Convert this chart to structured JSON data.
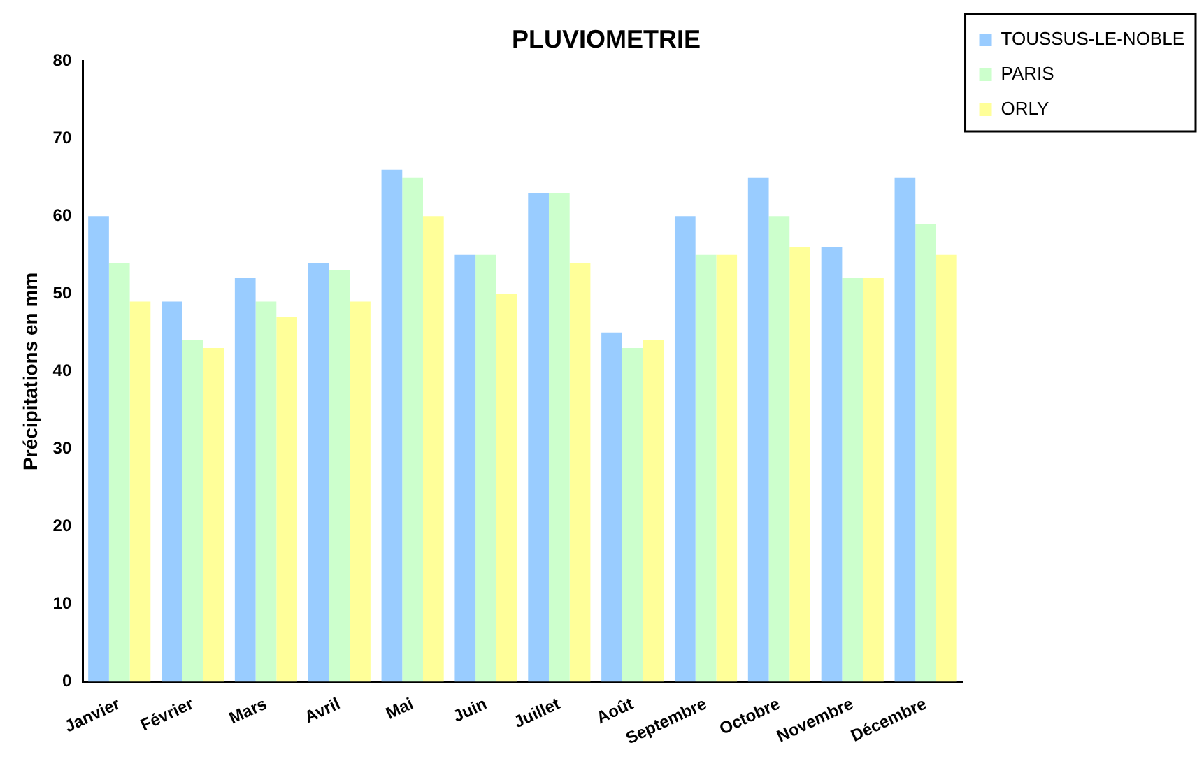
{
  "chart_data": {
    "type": "bar",
    "title": "PLUVIOMETRIE",
    "ylabel": "Précipitations en mm",
    "categories": [
      "Janvier",
      "Février",
      "Mars",
      "Avril",
      "Mai",
      "Juin",
      "Juillet",
      "Août",
      "Septembre",
      "Octobre",
      "Novembre",
      "Décembre"
    ],
    "series": [
      {
        "name": "TOUSSUS-LE-NOBLE",
        "color": "#99ccff",
        "values": [
          60,
          49,
          52,
          54,
          66,
          55,
          63,
          45,
          60,
          65,
          56,
          65
        ]
      },
      {
        "name": "PARIS",
        "color": "#ccffcc",
        "values": [
          54,
          44,
          49,
          53,
          65,
          55,
          63,
          43,
          55,
          60,
          52,
          59
        ]
      },
      {
        "name": "ORLY",
        "color": "#ffff99",
        "values": [
          49,
          43,
          47,
          49,
          60,
          50,
          54,
          44,
          55,
          56,
          52,
          55
        ]
      }
    ],
    "ylim": [
      0,
      80
    ],
    "yticks": [
      0,
      10,
      20,
      30,
      40,
      50,
      60,
      70,
      80
    ],
    "grid": false,
    "legend": "top right"
  }
}
